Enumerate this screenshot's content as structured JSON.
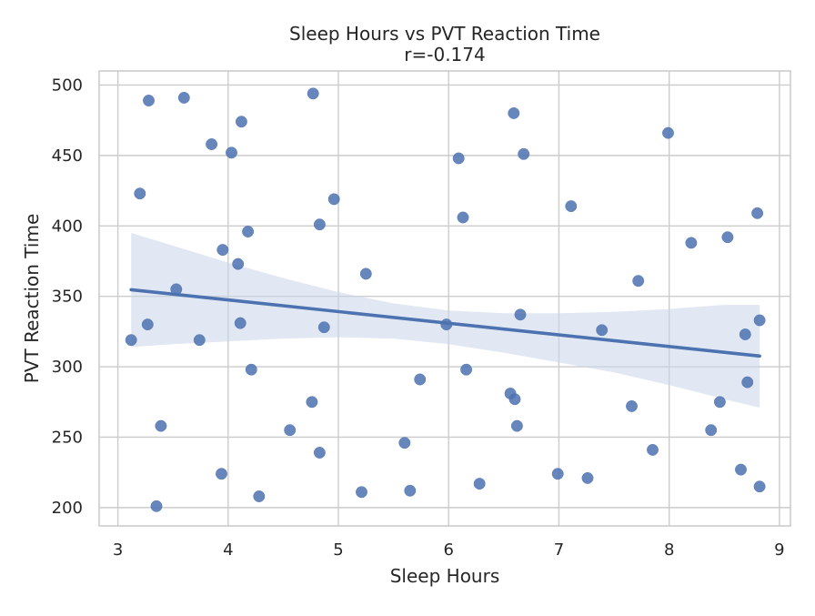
{
  "chart_data": {
    "type": "scatter",
    "title": "Sleep Hours vs PVT Reaction Time",
    "subtitle": "r=-0.174",
    "xlabel": "Sleep Hours",
    "ylabel": "PVT Reaction Time",
    "xlim": [
      2.83,
      9.1
    ],
    "ylim": [
      187,
      510
    ],
    "x_ticks": [
      3,
      4,
      5,
      6,
      7,
      8,
      9
    ],
    "y_ticks": [
      200,
      250,
      300,
      350,
      400,
      450,
      500
    ],
    "grid": true,
    "point_color": "#4c72b0",
    "line_color": "#4c72b0",
    "band_color": "#c9d5ea",
    "points": [
      {
        "x": 3.12,
        "y": 319
      },
      {
        "x": 3.2,
        "y": 423
      },
      {
        "x": 3.27,
        "y": 330
      },
      {
        "x": 3.28,
        "y": 489
      },
      {
        "x": 3.35,
        "y": 201
      },
      {
        "x": 3.39,
        "y": 258
      },
      {
        "x": 3.53,
        "y": 355
      },
      {
        "x": 3.6,
        "y": 491
      },
      {
        "x": 3.74,
        "y": 319
      },
      {
        "x": 3.85,
        "y": 458
      },
      {
        "x": 3.94,
        "y": 224
      },
      {
        "x": 3.95,
        "y": 383
      },
      {
        "x": 4.03,
        "y": 452
      },
      {
        "x": 4.09,
        "y": 373
      },
      {
        "x": 4.11,
        "y": 331
      },
      {
        "x": 4.12,
        "y": 474
      },
      {
        "x": 4.18,
        "y": 396
      },
      {
        "x": 4.21,
        "y": 298
      },
      {
        "x": 4.28,
        "y": 208
      },
      {
        "x": 4.56,
        "y": 255
      },
      {
        "x": 4.76,
        "y": 275
      },
      {
        "x": 4.77,
        "y": 494
      },
      {
        "x": 4.83,
        "y": 239
      },
      {
        "x": 4.83,
        "y": 401
      },
      {
        "x": 4.87,
        "y": 328
      },
      {
        "x": 4.96,
        "y": 419
      },
      {
        "x": 5.21,
        "y": 211
      },
      {
        "x": 5.25,
        "y": 366
      },
      {
        "x": 5.6,
        "y": 246
      },
      {
        "x": 5.65,
        "y": 212
      },
      {
        "x": 5.74,
        "y": 291
      },
      {
        "x": 5.98,
        "y": 330
      },
      {
        "x": 6.09,
        "y": 448
      },
      {
        "x": 6.13,
        "y": 406
      },
      {
        "x": 6.16,
        "y": 298
      },
      {
        "x": 6.28,
        "y": 217
      },
      {
        "x": 6.56,
        "y": 281
      },
      {
        "x": 6.59,
        "y": 480
      },
      {
        "x": 6.6,
        "y": 277
      },
      {
        "x": 6.62,
        "y": 258
      },
      {
        "x": 6.65,
        "y": 337
      },
      {
        "x": 6.68,
        "y": 451
      },
      {
        "x": 6.99,
        "y": 224
      },
      {
        "x": 7.11,
        "y": 414
      },
      {
        "x": 7.26,
        "y": 221
      },
      {
        "x": 7.39,
        "y": 326
      },
      {
        "x": 7.66,
        "y": 272
      },
      {
        "x": 7.72,
        "y": 361
      },
      {
        "x": 7.85,
        "y": 241
      },
      {
        "x": 7.99,
        "y": 466
      },
      {
        "x": 8.2,
        "y": 388
      },
      {
        "x": 8.38,
        "y": 255
      },
      {
        "x": 8.46,
        "y": 275
      },
      {
        "x": 8.53,
        "y": 392
      },
      {
        "x": 8.65,
        "y": 227
      },
      {
        "x": 8.69,
        "y": 323
      },
      {
        "x": 8.71,
        "y": 289
      },
      {
        "x": 8.8,
        "y": 409
      },
      {
        "x": 8.82,
        "y": 215
      },
      {
        "x": 8.82,
        "y": 333
      }
    ],
    "regression": {
      "x_start": 3.12,
      "y_start": 354.7,
      "x_end": 8.82,
      "y_end": 307.6
    },
    "confidence_band": {
      "x": [
        3.12,
        3.5,
        4.0,
        4.5,
        5.0,
        5.5,
        6.0,
        6.5,
        7.0,
        7.5,
        8.0,
        8.5,
        8.82
      ],
      "upper": [
        395,
        386,
        374,
        363,
        353,
        345,
        340,
        338,
        338,
        339,
        341,
        344,
        344
      ],
      "lower": [
        314,
        316,
        318,
        320,
        321,
        320,
        316,
        310,
        303,
        296,
        287,
        277,
        271
      ]
    }
  }
}
